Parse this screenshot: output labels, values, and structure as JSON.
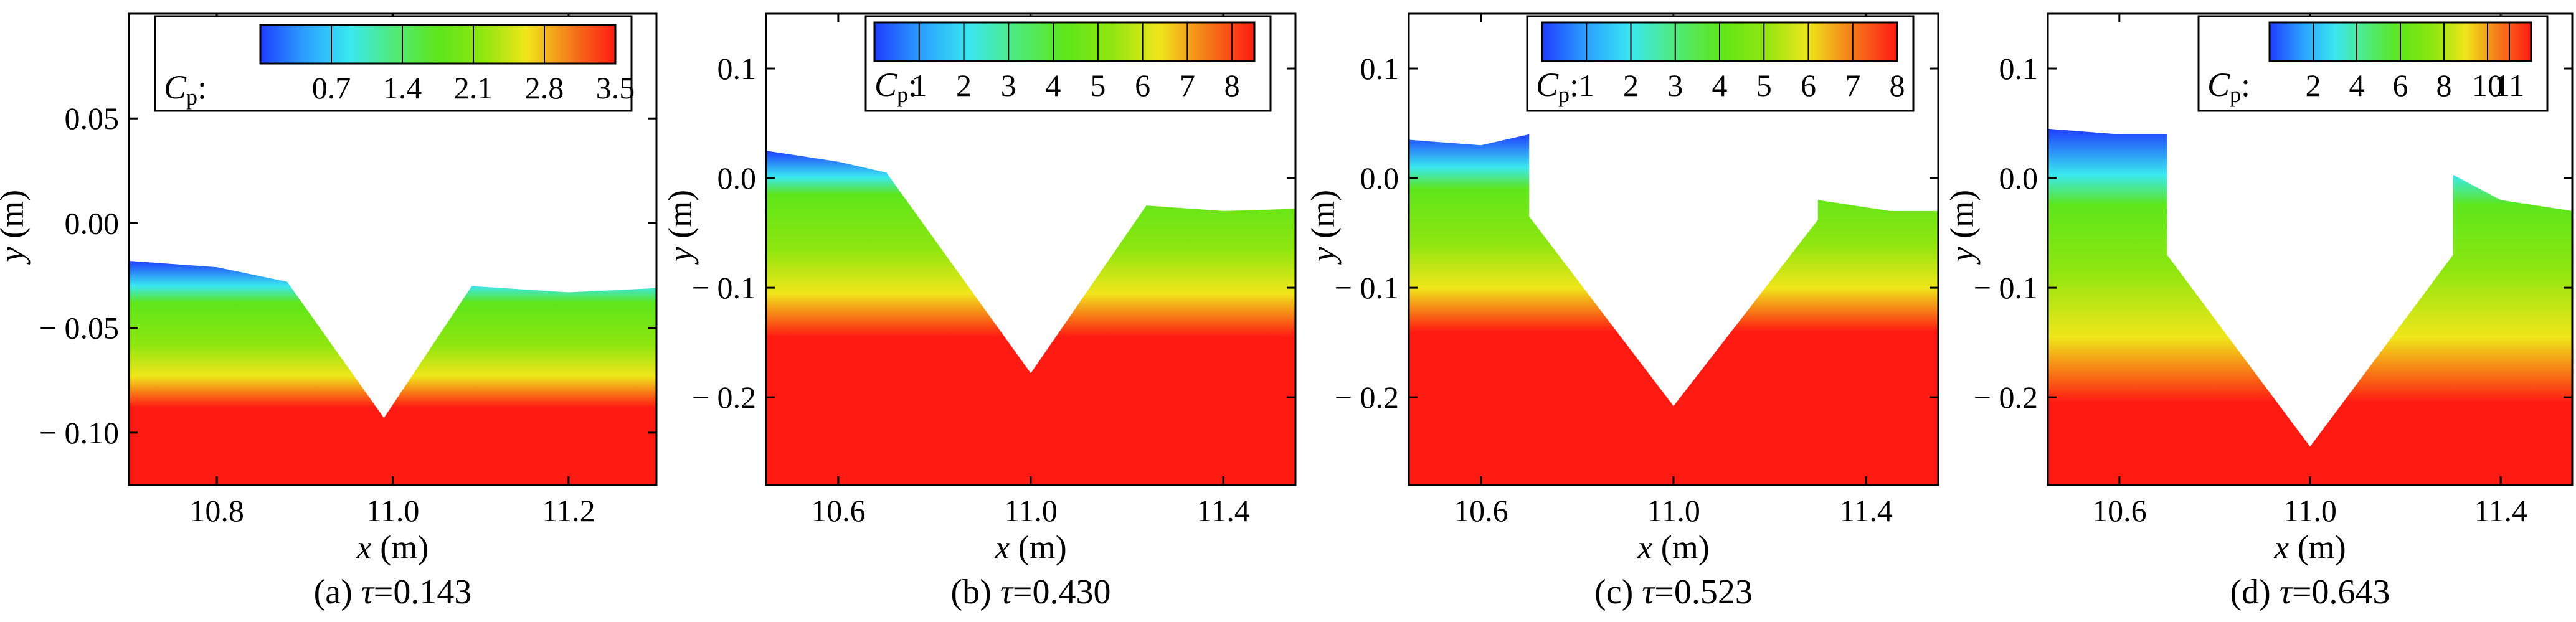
{
  "colors": {
    "scale": [
      "#1f3dff",
      "#2aa0ff",
      "#39e8f0",
      "#4fea7a",
      "#5de61a",
      "#8fe60f",
      "#f0e61a",
      "#f57a1a",
      "#ff1a12"
    ]
  },
  "chart_data": [
    {
      "type": "heatmap",
      "caption": "(a) τ=0.143",
      "caption_prefix": "(a) ",
      "caption_var": "τ",
      "caption_value": "=0.143",
      "xlabel": "x (m)",
      "ylabel": "y (m)",
      "xlabel_var": "x",
      "xlabel_unit": " (m)",
      "ylabel_var": "y",
      "ylabel_unit": " (m)",
      "xlim": [
        10.7,
        11.3
      ],
      "ylim": [
        -0.125,
        0.1
      ],
      "xticks": [
        10.8,
        11.0,
        11.2
      ],
      "xtick_labels": [
        "10.8",
        "11.0",
        "11.2"
      ],
      "yticks": [
        0.05,
        0.0,
        -0.05,
        -0.1
      ],
      "ytick_labels": [
        "0.05",
        "0.00",
        "− 0.05",
        "− 0.10"
      ],
      "colorbar": {
        "label": "C",
        "label_sub": "p",
        "range": [
          0,
          3.5
        ],
        "ticks": [
          0.7,
          1.4,
          2.1,
          2.8,
          3.5
        ],
        "tick_labels": [
          "0.7",
          "1.4",
          "2.1",
          "2.8",
          "3.5"
        ]
      },
      "free_surface": {
        "left": [
          [
            10.7,
            -0.018
          ],
          [
            10.8,
            -0.021
          ],
          [
            10.88,
            -0.028
          ]
        ],
        "v_notch": [
          [
            10.88,
            -0.028
          ],
          [
            10.99,
            -0.093
          ],
          [
            11.09,
            -0.03
          ]
        ],
        "right": [
          [
            11.09,
            -0.03
          ],
          [
            11.2,
            -0.033
          ],
          [
            11.3,
            -0.031
          ]
        ]
      },
      "band_depths": [
        0.02,
        0.04,
        0.055,
        0.07
      ]
    },
    {
      "type": "heatmap",
      "caption": "(b) τ=0.430",
      "caption_prefix": "(b) ",
      "caption_var": "τ",
      "caption_value": "=0.430",
      "xlabel": "x (m)",
      "ylabel": "y (m)",
      "xlabel_var": "x",
      "xlabel_unit": " (m)",
      "ylabel_var": "y",
      "ylabel_unit": " (m)",
      "xlim": [
        10.45,
        11.55
      ],
      "ylim": [
        -0.28,
        0.15
      ],
      "xticks": [
        10.6,
        11.0,
        11.4
      ],
      "xtick_labels": [
        "10.6",
        "11.0",
        "11.4"
      ],
      "yticks": [
        0.1,
        0.0,
        -0.1,
        -0.2
      ],
      "ytick_labels": [
        "0.1",
        "0.0",
        "− 0.1",
        "− 0.2"
      ],
      "colorbar": {
        "label": "C",
        "label_sub": "p",
        "range": [
          0,
          8.5
        ],
        "ticks": [
          1,
          2,
          3,
          4,
          5,
          6,
          7,
          8
        ],
        "tick_labels": [
          "1",
          "2",
          "3",
          "4",
          "5",
          "6",
          "7",
          "8"
        ]
      },
      "free_surface": {
        "left": [
          [
            10.45,
            0.025
          ],
          [
            10.6,
            0.015
          ],
          [
            10.7,
            0.005
          ]
        ],
        "v_notch": [
          [
            10.7,
            0.005
          ],
          [
            11.0,
            -0.178
          ],
          [
            11.24,
            -0.025
          ]
        ],
        "right": [
          [
            11.24,
            -0.025
          ],
          [
            11.4,
            -0.03
          ],
          [
            11.55,
            -0.028
          ]
        ]
      },
      "band_depths": [
        0.04,
        0.09,
        0.13,
        0.17
      ]
    },
    {
      "type": "heatmap",
      "caption": "(c) τ=0.523",
      "caption_prefix": "(c) ",
      "caption_var": "τ",
      "caption_value": "=0.523",
      "xlabel": "x (m)",
      "ylabel": "y (m)",
      "xlabel_var": "x",
      "xlabel_unit": " (m)",
      "ylabel_var": "y",
      "ylabel_unit": " (m)",
      "xlim": [
        10.45,
        11.55
      ],
      "ylim": [
        -0.28,
        0.15
      ],
      "xticks": [
        10.6,
        11.0,
        11.4
      ],
      "xtick_labels": [
        "10.6",
        "11.0",
        "11.4"
      ],
      "yticks": [
        0.1,
        0.0,
        -0.1,
        -0.2
      ],
      "ytick_labels": [
        "0.1",
        "0.0",
        "− 0.1",
        "− 0.2"
      ],
      "colorbar": {
        "label": "C",
        "label_sub": "p",
        "range": [
          0,
          8
        ],
        "ticks": [
          1,
          2,
          3,
          4,
          5,
          6,
          7,
          8
        ],
        "tick_labels": [
          "1",
          "2",
          "3",
          "4",
          "5",
          "6",
          "7",
          "8"
        ]
      },
      "free_surface": {
        "left": [
          [
            10.45,
            0.035
          ],
          [
            10.6,
            0.03
          ],
          [
            10.7,
            0.04
          ]
        ],
        "v_notch": [
          [
            10.7,
            -0.035
          ],
          [
            11.0,
            -0.208
          ],
          [
            11.3,
            -0.038
          ]
        ],
        "right": [
          [
            11.3,
            -0.02
          ],
          [
            11.45,
            -0.03
          ],
          [
            11.55,
            -0.03
          ]
        ]
      },
      "band_depths": [
        0.05,
        0.1,
        0.14,
        0.18
      ]
    },
    {
      "type": "heatmap",
      "caption": "(d) τ=0.643",
      "caption_prefix": "(d) ",
      "caption_var": "τ",
      "caption_value": "=0.643",
      "xlabel": "x (m)",
      "ylabel": "y (m)",
      "xlabel_var": "x",
      "xlabel_unit": " (m)",
      "ylabel_var": "y",
      "ylabel_unit": " (m)",
      "xlim": [
        10.45,
        11.55
      ],
      "ylim": [
        -0.28,
        0.15
      ],
      "xticks": [
        10.6,
        11.0,
        11.4
      ],
      "xtick_labels": [
        "10.6",
        "11.0",
        "11.4"
      ],
      "yticks": [
        0.1,
        0.0,
        -0.1,
        -0.2
      ],
      "ytick_labels": [
        "0.1",
        "0.0",
        "− 0.1",
        "− 0.2"
      ],
      "colorbar": {
        "label": "C",
        "label_sub": "p",
        "range": [
          0,
          12
        ],
        "ticks": [
          2,
          4,
          6,
          8,
          10,
          11
        ],
        "tick_labels": [
          "2",
          "4",
          "6",
          "8",
          "10",
          "11"
        ]
      },
      "free_surface": {
        "left": [
          [
            10.45,
            0.045
          ],
          [
            10.6,
            0.04
          ],
          [
            10.7,
            0.04
          ]
        ],
        "v_notch": [
          [
            10.7,
            -0.07
          ],
          [
            11.0,
            -0.245
          ],
          [
            11.3,
            -0.07
          ]
        ],
        "right": [
          [
            11.3,
            0.003
          ],
          [
            11.4,
            -0.02
          ],
          [
            11.55,
            -0.03
          ]
        ]
      },
      "band_depths": [
        0.07,
        0.13,
        0.19,
        0.25
      ]
    }
  ]
}
